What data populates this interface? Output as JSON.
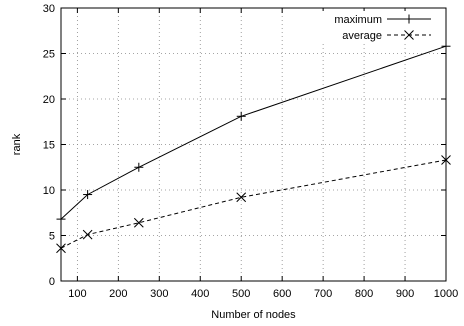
{
  "chart_data": {
    "type": "line",
    "xlabel": "Number of nodes",
    "ylabel": "rank",
    "xlim": [
      60,
      1000
    ],
    "ylim": [
      0,
      30
    ],
    "xticks": [
      100,
      200,
      300,
      400,
      500,
      600,
      700,
      800,
      900,
      1000
    ],
    "yticks": [
      0,
      5,
      10,
      15,
      20,
      25,
      30
    ],
    "grid": true,
    "legend_position": "top-right",
    "series": [
      {
        "name": "maximum",
        "marker": "plus",
        "line": "solid",
        "x": [
          60,
          125,
          250,
          500,
          1000
        ],
        "y": [
          6.8,
          9.5,
          12.5,
          18.1,
          25.8
        ]
      },
      {
        "name": "average",
        "marker": "cross",
        "line": "dashed",
        "x": [
          60,
          125,
          250,
          500,
          1000
        ],
        "y": [
          3.6,
          5.1,
          6.4,
          9.2,
          13.3
        ]
      }
    ]
  }
}
